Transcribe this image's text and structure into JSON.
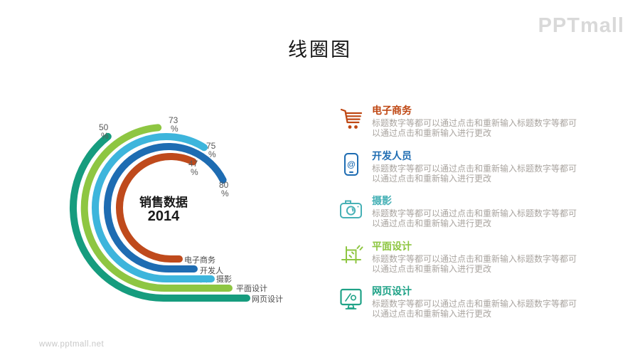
{
  "page": {
    "title": "线圈图"
  },
  "brand": {
    "logo": "PPTmall",
    "url": "www.pptmall.net"
  },
  "chart_data": {
    "type": "radial_bar",
    "style": "coil-arcs-with-straight-tails",
    "center_title": "销售数据",
    "center_year": "2014",
    "unit": "%",
    "order": "innermost-to-outermost",
    "categories": [
      "电子商务",
      "开发人员",
      "摄影",
      "平面设计",
      "网页设计"
    ],
    "values": [
      47,
      80,
      75,
      73,
      50
    ],
    "colors": [
      "#bf4a1c",
      "#1e6cb2",
      "#3db5dc",
      "#8ec642",
      "#169c7e"
    ],
    "legend_position": "right"
  },
  "panel": {
    "items": [
      {
        "title": "电子商务",
        "icon": "shopping-cart-icon",
        "color": "#bf4713",
        "desc": "标题数字等都可以通过点击和重新输入标题数字等都可以通过点击和重新输入进行更改"
      },
      {
        "title": "开发人员",
        "icon": "mobile-phone-icon",
        "color": "#1e6cb2",
        "desc": "标题数字等都可以通过点击和重新输入标题数字等都可以通过点击和重新输入进行更改"
      },
      {
        "title": "摄影",
        "icon": "camera-icon",
        "color": "#47b1b6",
        "desc": "标题数字等都可以通过点击和重新输入标题数字等都可以通过点击和重新输入进行更改"
      },
      {
        "title": "平面设计",
        "icon": "crop-tool-icon",
        "color": "#8ec642",
        "desc": "标题数字等都可以通过点击和重新输入标题数字等都可以通过点击和重新输入进行更改"
      },
      {
        "title": "网页设计",
        "icon": "monitor-icon",
        "color": "#1fa287",
        "desc": "标题数字等都可以通过点击和重新输入标题数字等都可以通过点击和重新输入进行更改"
      }
    ]
  }
}
